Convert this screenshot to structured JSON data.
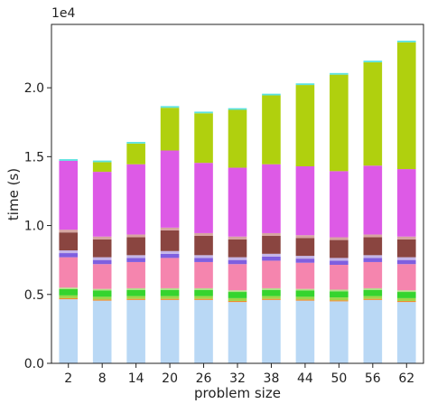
{
  "chart_data": {
    "type": "bar",
    "stacked": true,
    "xlabel": "problem size",
    "ylabel": "time (s)",
    "y_multiplier_label": "1e4",
    "y_scale_factor": 10000,
    "ylim": [
      0,
      24600
    ],
    "yticks": [
      0,
      5000,
      10000,
      15000,
      20000
    ],
    "ytick_labels": [
      "0.0",
      "0.5",
      "1.0",
      "1.5",
      "2.0"
    ],
    "categories": [
      "2",
      "8",
      "14",
      "20",
      "26",
      "32",
      "38",
      "44",
      "50",
      "56",
      "62"
    ],
    "grid": false,
    "legend": "none",
    "series": [
      {
        "color": "#b9d8f5",
        "values": [
          4650,
          4550,
          4600,
          4600,
          4600,
          4450,
          4600,
          4550,
          4500,
          4600,
          4450
        ]
      },
      {
        "color": "#f08c2a",
        "values": [
          80,
          80,
          80,
          80,
          80,
          80,
          80,
          80,
          80,
          80,
          80
        ]
      },
      {
        "color": "#9ed649",
        "values": [
          200,
          200,
          200,
          200,
          200,
          200,
          200,
          200,
          200,
          200,
          200
        ]
      },
      {
        "color": "#35d42e",
        "values": [
          450,
          450,
          450,
          450,
          450,
          450,
          450,
          450,
          450,
          450,
          450
        ]
      },
      {
        "color": "#b0e08a",
        "values": [
          120,
          120,
          120,
          120,
          120,
          120,
          120,
          120,
          120,
          120,
          120
        ]
      },
      {
        "color": "#f585ae",
        "values": [
          2200,
          1800,
          1900,
          2200,
          1900,
          1900,
          2000,
          1900,
          1800,
          1900,
          1900
        ]
      },
      {
        "color": "#7f5fe0",
        "values": [
          300,
          300,
          300,
          300,
          300,
          300,
          300,
          300,
          300,
          300,
          300
        ]
      },
      {
        "color": "#c5b5e8",
        "values": [
          200,
          200,
          200,
          200,
          200,
          200,
          200,
          200,
          200,
          200,
          200
        ]
      },
      {
        "color": "#8a4540",
        "values": [
          1300,
          1300,
          1300,
          1500,
          1400,
          1300,
          1300,
          1300,
          1300,
          1300,
          1300
        ]
      },
      {
        "color": "#d6a4a0",
        "values": [
          200,
          200,
          200,
          200,
          200,
          200,
          200,
          200,
          200,
          200,
          200
        ]
      },
      {
        "color": "#dd5ae6",
        "values": [
          5000,
          4700,
          5100,
          5600,
          5100,
          5000,
          5000,
          5000,
          4800,
          5000,
          4900
        ]
      },
      {
        "color": "#b0d00e",
        "values": [
          0,
          700,
          1500,
          3100,
          3600,
          4200,
          5000,
          5900,
          7000,
          7500,
          9200
        ]
      },
      {
        "color": "#5ce2e0",
        "values": [
          120,
          120,
          120,
          120,
          120,
          120,
          120,
          120,
          120,
          120,
          120
        ]
      }
    ]
  }
}
